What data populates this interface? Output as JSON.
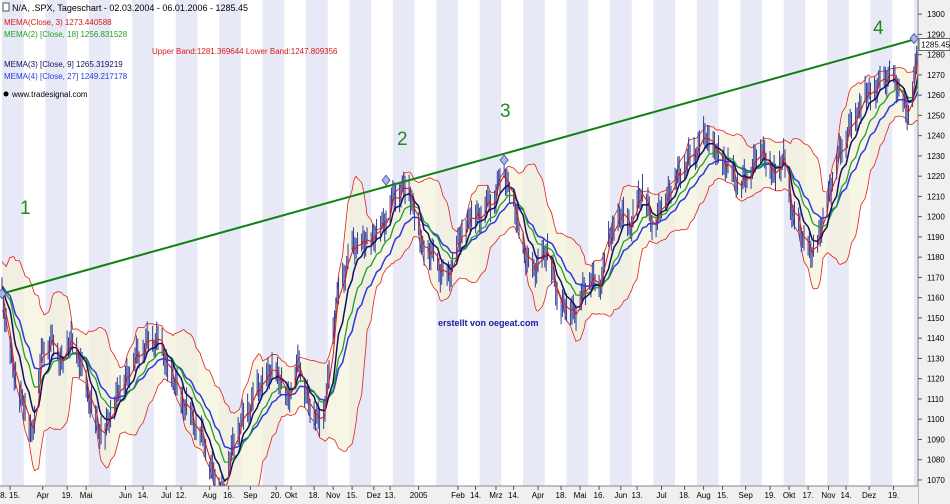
{
  "header": {
    "title": "N/A, .SPX, Tageschart - 02.03.2004 - 06.01.2006 - 1285.45",
    "legend": [
      {
        "text": "MEMA(Close, 3) 1273.440588",
        "color": "#d81818"
      },
      {
        "text": "MEMA(2) [Close, 18] 1256.831528",
        "color": "#22a022"
      },
      {
        "text": "MEMA(3) [Close, 9] 1265.319219",
        "color": "#101060"
      },
      {
        "text": "MEMA(4) [Close, 27] 1249.217178",
        "color": "#2a3ae0"
      }
    ],
    "bands": "Upper Band:1281.369644 Lower Band:1247.809356",
    "source": "www.tradesignal.com"
  },
  "watermark": "erstellt von oegeat.com",
  "price_tag": "1285.45",
  "colors": {
    "band": "#e02020",
    "trend": "#128012",
    "price": "#2f3d9a",
    "mema_fast": "#d81818",
    "mema_mid": "#101060",
    "mema_slow1": "#22a022",
    "mema_slow2": "#2a3ae0",
    "stripe": "#d4d8ee",
    "wave_label": "#1e8a1e"
  },
  "chart_data": {
    "type": "line",
    "title": "N/A, .SPX, Tageschart - 02.03.2004 - 06.01.2006 - 1285.45",
    "x_range": [
      "2004-03-02",
      "2006-01-06"
    ],
    "y_range": [
      1068,
      1306
    ],
    "y_ticks": [
      1070,
      1080,
      1090,
      1100,
      1110,
      1120,
      1130,
      1140,
      1150,
      1160,
      1170,
      1180,
      1190,
      1200,
      1210,
      1220,
      1230,
      1240,
      1250,
      1260,
      1270,
      1280,
      1290,
      1300
    ],
    "x_ticks": [
      {
        "label": "8. 15.",
        "x": "2004-03-08"
      },
      {
        "label": "Apr",
        "x": "2004-04-01"
      },
      {
        "label": "19.",
        "x": "2004-04-19"
      },
      {
        "label": "Mai",
        "x": "2004-05-03"
      },
      {
        "label": "Jun",
        "x": "2004-06-01"
      },
      {
        "label": "14.",
        "x": "2004-06-14"
      },
      {
        "label": "Jul",
        "x": "2004-07-01"
      },
      {
        "label": "12.",
        "x": "2004-07-12"
      },
      {
        "label": "Aug",
        "x": "2004-08-02"
      },
      {
        "label": "16.",
        "x": "2004-08-16"
      },
      {
        "label": "Sep",
        "x": "2004-09-01"
      },
      {
        "label": "20.",
        "x": "2004-09-20"
      },
      {
        "label": "Okt",
        "x": "2004-10-01"
      },
      {
        "label": "18.",
        "x": "2004-10-18"
      },
      {
        "label": "Nov",
        "x": "2004-11-01"
      },
      {
        "label": "15.",
        "x": "2004-11-15"
      },
      {
        "label": "Dez",
        "x": "2004-12-01"
      },
      {
        "label": "13.",
        "x": "2004-12-13"
      },
      {
        "label": "2005",
        "x": "2005-01-03"
      },
      {
        "label": "Feb",
        "x": "2005-02-01"
      },
      {
        "label": "14.",
        "x": "2005-02-14"
      },
      {
        "label": "Mrz",
        "x": "2005-03-01"
      },
      {
        "label": "14.",
        "x": "2005-03-14"
      },
      {
        "label": "Apr",
        "x": "2005-04-01"
      },
      {
        "label": "18.",
        "x": "2005-04-18"
      },
      {
        "label": "Mai",
        "x": "2005-05-02"
      },
      {
        "label": "16.",
        "x": "2005-05-16"
      },
      {
        "label": "Jun",
        "x": "2005-06-01"
      },
      {
        "label": "13.",
        "x": "2005-06-13"
      },
      {
        "label": "Jul",
        "x": "2005-07-01"
      },
      {
        "label": "18.",
        "x": "2005-07-18"
      },
      {
        "label": "Aug",
        "x": "2005-08-01"
      },
      {
        "label": "15.",
        "x": "2005-08-15"
      },
      {
        "label": "Sep",
        "x": "2005-09-01"
      },
      {
        "label": "19.",
        "x": "2005-09-19"
      },
      {
        "label": "Okt",
        "x": "2005-10-03"
      },
      {
        "label": "17.",
        "x": "2005-10-17"
      },
      {
        "label": "Nov",
        "x": "2005-11-01"
      },
      {
        "label": "14.",
        "x": "2005-11-14"
      },
      {
        "label": "Dez",
        "x": "2005-12-01"
      },
      {
        "label": "19.",
        "x": "2005-12-19"
      }
    ],
    "close": [
      [
        "2004-03-02",
        1163
      ],
      [
        "2004-03-10",
        1124
      ],
      [
        "2004-03-17",
        1110
      ],
      [
        "2004-03-24",
        1093
      ],
      [
        "2004-04-01",
        1135
      ],
      [
        "2004-04-08",
        1138
      ],
      [
        "2004-04-16",
        1128
      ],
      [
        "2004-04-22",
        1140
      ],
      [
        "2004-05-03",
        1117
      ],
      [
        "2004-05-10",
        1098
      ],
      [
        "2004-05-17",
        1092
      ],
      [
        "2004-05-24",
        1110
      ],
      [
        "2004-06-01",
        1121
      ],
      [
        "2004-06-10",
        1132
      ],
      [
        "2004-06-18",
        1138
      ],
      [
        "2004-06-25",
        1140
      ],
      [
        "2004-07-02",
        1125
      ],
      [
        "2004-07-12",
        1110
      ],
      [
        "2004-07-20",
        1101
      ],
      [
        "2004-07-28",
        1090
      ],
      [
        "2004-08-05",
        1073
      ],
      [
        "2004-08-12",
        1064
      ],
      [
        "2004-08-20",
        1090
      ],
      [
        "2004-08-27",
        1100
      ],
      [
        "2004-09-03",
        1110
      ],
      [
        "2004-09-10",
        1118
      ],
      [
        "2004-09-20",
        1125
      ],
      [
        "2004-09-28",
        1110
      ],
      [
        "2004-10-07",
        1128
      ],
      [
        "2004-10-15",
        1105
      ],
      [
        "2004-10-25",
        1100
      ],
      [
        "2004-11-03",
        1155
      ],
      [
        "2004-11-08",
        1170
      ],
      [
        "2004-11-16",
        1186
      ],
      [
        "2004-11-24",
        1186
      ],
      [
        "2004-12-03",
        1192
      ],
      [
        "2004-12-10",
        1200
      ],
      [
        "2004-12-17",
        1212
      ],
      [
        "2004-12-27",
        1215
      ],
      [
        "2005-01-06",
        1184
      ],
      [
        "2005-01-14",
        1180
      ],
      [
        "2005-01-24",
        1168
      ],
      [
        "2005-02-01",
        1186
      ],
      [
        "2005-02-10",
        1200
      ],
      [
        "2005-02-18",
        1202
      ],
      [
        "2005-02-28",
        1210
      ],
      [
        "2005-03-07",
        1224
      ],
      [
        "2005-03-16",
        1200
      ],
      [
        "2005-03-24",
        1176
      ],
      [
        "2005-04-01",
        1175
      ],
      [
        "2005-04-08",
        1185
      ],
      [
        "2005-04-15",
        1160
      ],
      [
        "2005-04-22",
        1155
      ],
      [
        "2005-04-29",
        1154
      ],
      [
        "2005-05-09",
        1170
      ],
      [
        "2005-05-16",
        1165
      ],
      [
        "2005-05-24",
        1190
      ],
      [
        "2005-06-01",
        1200
      ],
      [
        "2005-06-09",
        1196
      ],
      [
        "2005-06-17",
        1215
      ],
      [
        "2005-06-24",
        1195
      ],
      [
        "2005-07-01",
        1205
      ],
      [
        "2005-07-08",
        1215
      ],
      [
        "2005-07-18",
        1225
      ],
      [
        "2005-07-26",
        1232
      ],
      [
        "2005-08-03",
        1240
      ],
      [
        "2005-08-11",
        1230
      ],
      [
        "2005-08-19",
        1225
      ],
      [
        "2005-08-29",
        1215
      ],
      [
        "2005-09-06",
        1225
      ],
      [
        "2005-09-13",
        1235
      ],
      [
        "2005-09-21",
        1220
      ],
      [
        "2005-09-29",
        1228
      ],
      [
        "2005-10-06",
        1200
      ],
      [
        "2005-10-13",
        1190
      ],
      [
        "2005-10-20",
        1180
      ],
      [
        "2005-10-28",
        1198
      ],
      [
        "2005-11-04",
        1220
      ],
      [
        "2005-11-11",
        1235
      ],
      [
        "2005-11-18",
        1246
      ],
      [
        "2005-11-28",
        1260
      ],
      [
        "2005-12-06",
        1262
      ],
      [
        "2005-12-14",
        1270
      ],
      [
        "2005-12-22",
        1265
      ],
      [
        "2005-12-30",
        1248
      ],
      [
        "2006-01-06",
        1285
      ]
    ],
    "trendline": [
      [
        "2004-03-02",
        1162
      ],
      [
        "2006-01-06",
        1288
      ]
    ],
    "waves": [
      {
        "label": "1",
        "x": "2004-03-02",
        "y": 1162
      },
      {
        "label": "2",
        "x": "2004-12-10",
        "y": 1218
      },
      {
        "label": "3",
        "x": "2005-03-07",
        "y": 1228
      },
      {
        "label": "4",
        "x": "2006-01-06",
        "y": 1288
      }
    ]
  }
}
